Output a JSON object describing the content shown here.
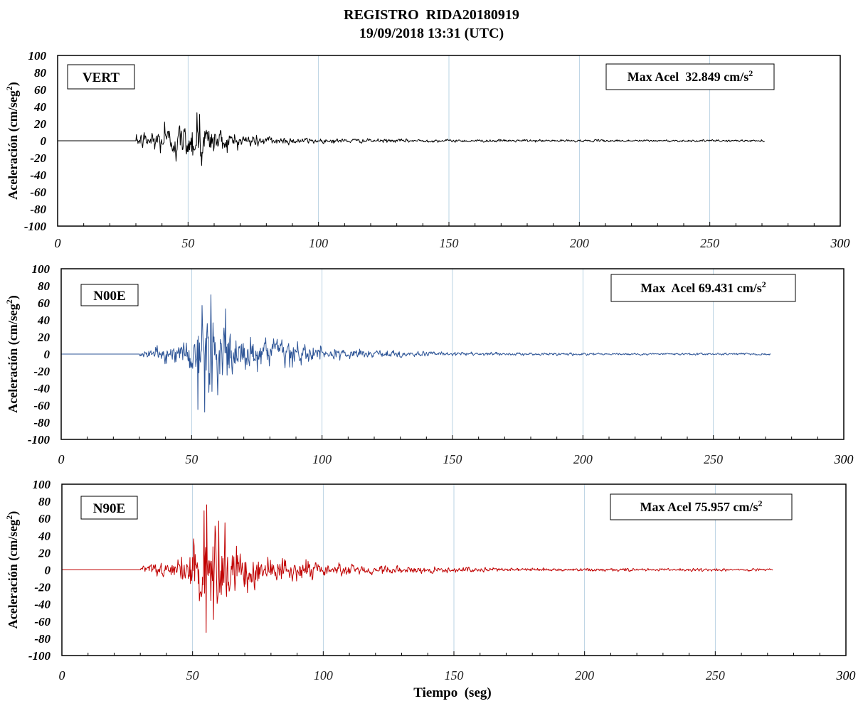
{
  "title": {
    "line1": "REGISTRO  RIDA20180919",
    "line2": "19/09/2018 13:31 (UTC)"
  },
  "xlabel": "Tiempo  (seg)",
  "chart_data": [
    {
      "type": "line",
      "component": "VERT",
      "max_label": "Max Acel  32.849 cm/s",
      "max_acel": 32.849,
      "color": "#000000",
      "ylabel": "Aceleración (cm/seg",
      "xlim": [
        0,
        300
      ],
      "ylim": [
        -100,
        100
      ],
      "xticks": [
        0,
        50,
        100,
        150,
        200,
        250,
        300
      ],
      "yticks": [
        100,
        80,
        60,
        40,
        20,
        0,
        -20,
        -40,
        -60,
        -80,
        -100
      ],
      "grid": "vertical",
      "signal": {
        "t_start": 0,
        "t_onset": 30,
        "t_end": 271,
        "dt": 0.2,
        "envelope": [
          [
            30,
            6
          ],
          [
            34,
            12
          ],
          [
            40,
            16
          ],
          [
            46,
            18
          ],
          [
            50,
            20
          ],
          [
            53,
            26
          ],
          [
            55,
            25
          ],
          [
            58,
            18
          ],
          [
            62,
            14
          ],
          [
            70,
            9
          ],
          [
            80,
            6
          ],
          [
            90,
            4
          ],
          [
            100,
            3
          ],
          [
            120,
            2.2
          ],
          [
            150,
            1.6
          ],
          [
            200,
            1.3
          ],
          [
            271,
            1.1
          ]
        ],
        "peaks": [
          [
            53.5,
            32.849
          ],
          [
            55.2,
            -29
          ],
          [
            54.5,
            31
          ],
          [
            41,
            22
          ],
          [
            45.5,
            -24
          ]
        ]
      }
    },
    {
      "type": "line",
      "component": "N00E",
      "max_label": "Max  Acel 69.431 cm/s",
      "max_acel": 69.431,
      "color": "#2E5597",
      "ylabel": "Aceleración (cm/seg",
      "xlim": [
        0,
        300
      ],
      "ylim": [
        -100,
        100
      ],
      "xticks": [
        0,
        50,
        100,
        150,
        200,
        250,
        300
      ],
      "yticks": [
        100,
        80,
        60,
        40,
        20,
        0,
        -20,
        -40,
        -60,
        -80,
        -100
      ],
      "grid": "vertical",
      "signal": {
        "t_start": 0,
        "t_onset": 30,
        "t_end": 272,
        "dt": 0.2,
        "envelope": [
          [
            30,
            3
          ],
          [
            35,
            8
          ],
          [
            40,
            10
          ],
          [
            47,
            14
          ],
          [
            50,
            25
          ],
          [
            53,
            40
          ],
          [
            56,
            48
          ],
          [
            58,
            42
          ],
          [
            62,
            32
          ],
          [
            70,
            20
          ],
          [
            80,
            16
          ],
          [
            90,
            13
          ],
          [
            100,
            8
          ],
          [
            110,
            5.5
          ],
          [
            120,
            4.5
          ],
          [
            140,
            3
          ],
          [
            160,
            2
          ],
          [
            200,
            1.5
          ],
          [
            272,
            1.2
          ]
        ],
        "peaks": [
          [
            57.5,
            69.431
          ],
          [
            52.5,
            -65
          ],
          [
            55,
            -68
          ],
          [
            54,
            57
          ],
          [
            63,
            53
          ],
          [
            60,
            -48
          ]
        ]
      }
    },
    {
      "type": "line",
      "component": "N90E",
      "max_label": "Max Acel 75.957 cm/s",
      "max_acel": 75.957,
      "color": "#C00000",
      "ylabel": "Aceleración (cm/seg",
      "xlim": [
        0,
        300
      ],
      "ylim": [
        -100,
        100
      ],
      "xticks": [
        0,
        50,
        100,
        150,
        200,
        250,
        300
      ],
      "yticks": [
        100,
        80,
        60,
        40,
        20,
        0,
        -20,
        -40,
        -60,
        -80,
        -100
      ],
      "grid": "vertical",
      "signal": {
        "t_start": 0,
        "t_onset": 30,
        "t_end": 272,
        "dt": 0.2,
        "envelope": [
          [
            30,
            3
          ],
          [
            35,
            7
          ],
          [
            40,
            8
          ],
          [
            45,
            12
          ],
          [
            48,
            18
          ],
          [
            50,
            30
          ],
          [
            53,
            42
          ],
          [
            55,
            52
          ],
          [
            58,
            46
          ],
          [
            62,
            36
          ],
          [
            70,
            24
          ],
          [
            80,
            16
          ],
          [
            90,
            12
          ],
          [
            100,
            9
          ],
          [
            110,
            6
          ],
          [
            120,
            5
          ],
          [
            140,
            3.5
          ],
          [
            160,
            2.5
          ],
          [
            200,
            1.8
          ],
          [
            272,
            1.4
          ]
        ],
        "peaks": [
          [
            55.5,
            75.957
          ],
          [
            55.2,
            -73
          ],
          [
            54.5,
            69
          ],
          [
            60,
            57
          ],
          [
            62.5,
            55
          ],
          [
            58,
            -58
          ]
        ]
      }
    }
  ]
}
